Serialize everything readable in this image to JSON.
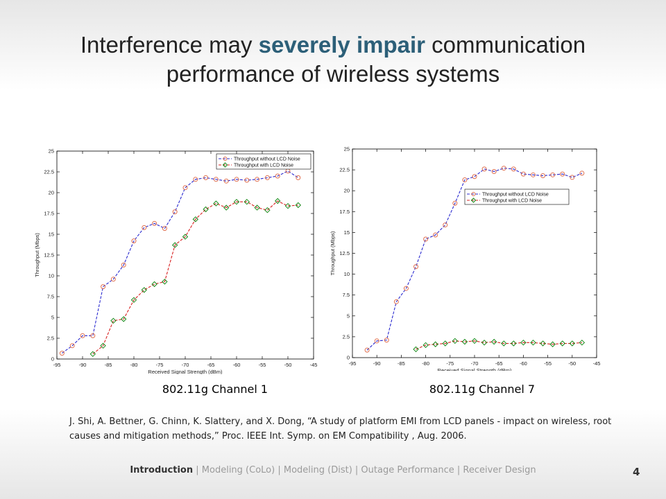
{
  "slide": {
    "title_part1": "Interference may ",
    "title_highlight": "severely impair",
    "title_part2": " communication performance of wireless systems",
    "page_number": "4"
  },
  "captions": {
    "left": "802.11g Channel 1",
    "right": "802.11g Channel 7"
  },
  "reference": "J. Shi, A. Bettner, G. Chinn, K. Slattery, and X. Dong, “A study of platform EMI from LCD panels - impact on wireless, root causes and mitigation methods,” Proc. IEEE Int. Symp. on EM Compatibility , Aug. 2006.",
  "footer": {
    "items": [
      "Introduction",
      "Modeling (CoLo)",
      "Modeling (Dist)",
      "Outage Performance",
      "Receiver Design"
    ],
    "active_index": 0,
    "separator": " | "
  },
  "colors": {
    "accent": "#2c5f78",
    "series_without": "#2a2ad0",
    "series_with": "#d82020",
    "marker_circle": "#e07050",
    "marker_diamond": "#1a8a1a"
  },
  "chart_data": [
    {
      "type": "line",
      "title": "",
      "xlabel": "Received Signal Strength (dBm)",
      "ylabel": "Throughput (Mbps)",
      "xlim": [
        -95,
        -45
      ],
      "ylim": [
        0,
        25
      ],
      "xticks": [
        -95,
        -90,
        -85,
        -80,
        -75,
        -70,
        -65,
        -60,
        -55,
        -50,
        -45
      ],
      "yticks": [
        0,
        2.5,
        5,
        7.5,
        10,
        12.5,
        15,
        17.5,
        20,
        22.5,
        25
      ],
      "legend_position": "top-right",
      "series": [
        {
          "name": "Throughput without LCD Noise",
          "marker": "circle",
          "x": [
            -94,
            -92,
            -90,
            -88,
            -86,
            -84,
            -82,
            -80,
            -78,
            -76,
            -74,
            -72,
            -70,
            -68,
            -66,
            -64,
            -62,
            -60,
            -58,
            -56,
            -54,
            -52,
            -50,
            -48
          ],
          "y": [
            0.7,
            1.6,
            2.8,
            2.8,
            8.7,
            9.6,
            11.3,
            14.2,
            15.8,
            16.3,
            15.7,
            17.7,
            20.6,
            21.6,
            21.8,
            21.6,
            21.4,
            21.6,
            21.5,
            21.6,
            21.8,
            22.0,
            22.6,
            21.8
          ]
        },
        {
          "name": "Throughput with LCD Noise",
          "marker": "diamond",
          "x": [
            -88,
            -86,
            -84,
            -82,
            -80,
            -78,
            -76,
            -74,
            -72,
            -70,
            -68,
            -66,
            -64,
            -62,
            -60,
            -58,
            -56,
            -54,
            -52,
            -50,
            -48
          ],
          "y": [
            0.6,
            1.6,
            4.6,
            4.8,
            7.1,
            8.3,
            9.0,
            9.3,
            13.7,
            14.7,
            16.8,
            18.0,
            18.7,
            18.2,
            18.9,
            18.9,
            18.2,
            17.9,
            19.0,
            18.4,
            18.5
          ]
        }
      ]
    },
    {
      "type": "line",
      "title": "",
      "xlabel": "Received Signal Strength (dBm)",
      "ylabel": "Throughput (Mbps)",
      "xlim": [
        -95,
        -45
      ],
      "ylim": [
        0,
        25
      ],
      "xticks": [
        -95,
        -90,
        -85,
        -80,
        -75,
        -70,
        -65,
        -60,
        -55,
        -50,
        -45
      ],
      "yticks": [
        0,
        2.5,
        5,
        7.5,
        10,
        12.5,
        15,
        17.5,
        20,
        22.5,
        25
      ],
      "legend_position": "center-right",
      "series": [
        {
          "name": "Throughput without LCD Noise",
          "marker": "circle",
          "x": [
            -92,
            -90,
            -88,
            -86,
            -84,
            -82,
            -80,
            -78,
            -76,
            -74,
            -72,
            -70,
            -68,
            -66,
            -64,
            -62,
            -60,
            -58,
            -56,
            -54,
            -52,
            -50,
            -48
          ],
          "y": [
            0.9,
            2.0,
            2.1,
            6.7,
            8.3,
            10.9,
            14.2,
            14.7,
            15.9,
            18.5,
            21.3,
            21.7,
            22.6,
            22.3,
            22.7,
            22.6,
            22.0,
            21.9,
            21.8,
            21.9,
            22.0,
            21.6,
            22.1
          ]
        },
        {
          "name": "Throughput with LCD Noise",
          "marker": "diamond",
          "x": [
            -82,
            -80,
            -78,
            -76,
            -74,
            -72,
            -70,
            -68,
            -66,
            -64,
            -62,
            -60,
            -58,
            -56,
            -54,
            -52,
            -50,
            -48
          ],
          "y": [
            1.0,
            1.5,
            1.6,
            1.7,
            2.0,
            1.9,
            2.0,
            1.8,
            1.9,
            1.7,
            1.7,
            1.8,
            1.8,
            1.7,
            1.6,
            1.7,
            1.7,
            1.8
          ]
        }
      ]
    }
  ]
}
